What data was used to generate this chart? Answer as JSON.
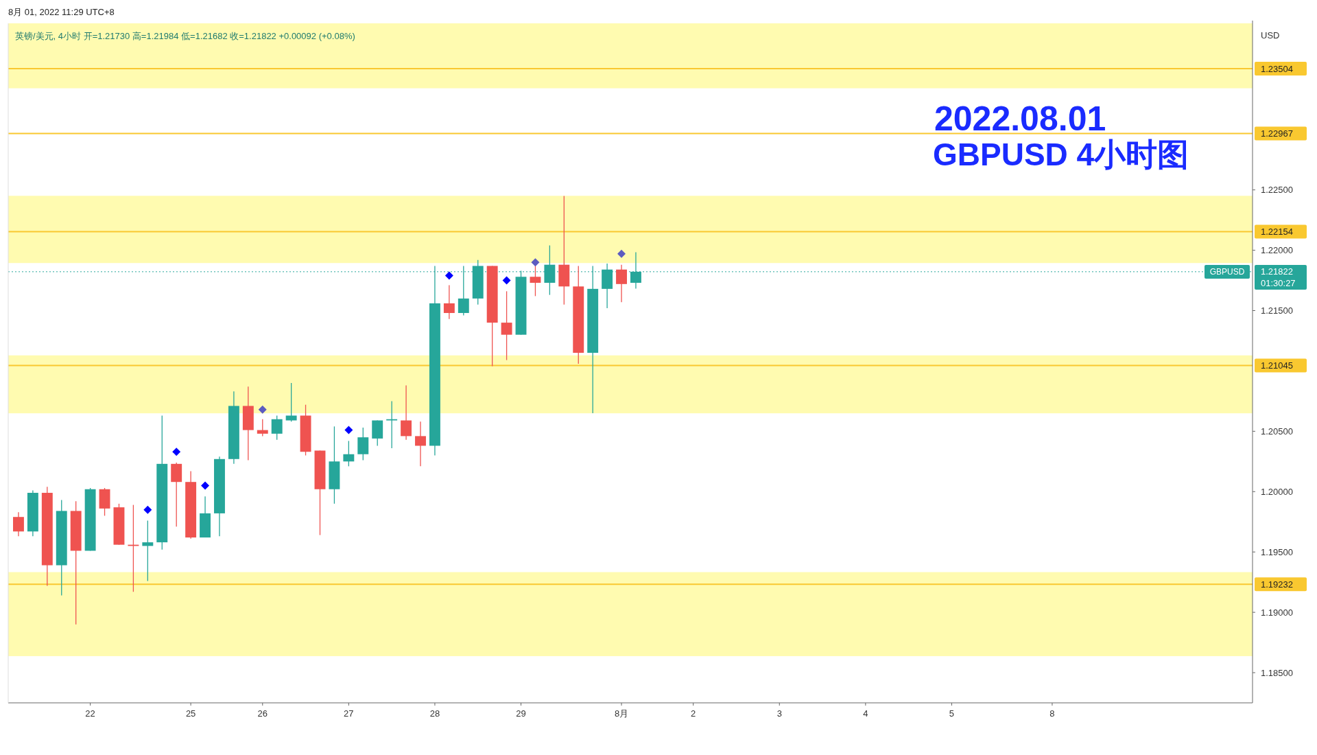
{
  "chart_data": {
    "type": "candlestick",
    "title": "2022.08.01",
    "subtitle": "GBPUSD 4小时图",
    "ylabel": "USD",
    "categories": [
      null,
      null,
      null,
      null,
      null,
      "22",
      null,
      null,
      null,
      null,
      null,
      null,
      "25",
      null,
      null,
      null,
      null,
      "26",
      null,
      null,
      null,
      null,
      null,
      "27",
      null,
      null,
      null,
      null,
      null,
      "28",
      null,
      null,
      null,
      null,
      null,
      "29",
      null,
      null,
      null,
      null,
      null,
      null,
      "8月",
      null,
      null,
      null,
      null,
      "2",
      null,
      null,
      null,
      null,
      null,
      "3",
      null,
      null,
      null,
      null,
      null,
      "4",
      null,
      null,
      null,
      null,
      null,
      "5",
      null,
      null,
      null,
      null,
      null,
      null,
      "8",
      null,
      null,
      null,
      null,
      null,
      null,
      null,
      null,
      null,
      null,
      null,
      null,
      null
    ],
    "ohlc": [
      [
        1.1979,
        1.1983,
        1.1963,
        1.1967
      ],
      [
        1.1967,
        1.2001,
        1.1963,
        1.1999
      ],
      [
        1.1999,
        1.2004,
        1.1922,
        1.1939
      ],
      [
        1.1939,
        1.1993,
        1.1914,
        1.1984
      ],
      [
        1.1984,
        1.1992,
        1.189,
        1.1951
      ],
      [
        1.1951,
        1.2003,
        1.1951,
        1.2002
      ],
      [
        1.2002,
        1.2003,
        1.198,
        1.1986
      ],
      [
        1.1987,
        1.199,
        1.1956,
        1.1956
      ],
      [
        1.1956,
        1.1989,
        1.1917,
        1.1955
      ],
      [
        1.1955,
        1.1976,
        1.1926,
        1.1958
      ],
      [
        1.1958,
        1.2063,
        1.1952,
        1.2023
      ],
      [
        1.2023,
        1.2024,
        1.1971,
        1.2008
      ],
      [
        1.2008,
        1.2017,
        1.1961,
        1.1962
      ],
      [
        1.1962,
        1.1996,
        1.1962,
        1.1982
      ],
      [
        1.1982,
        1.2029,
        1.1963,
        1.2027
      ],
      [
        1.2027,
        1.2083,
        1.2023,
        1.2071
      ],
      [
        1.2071,
        1.2087,
        1.2026,
        1.2051
      ],
      [
        1.2051,
        1.206,
        1.2046,
        1.2048
      ],
      [
        1.2048,
        1.2063,
        1.2043,
        1.206
      ],
      [
        1.2059,
        1.209,
        1.2058,
        1.2063
      ],
      [
        1.2063,
        1.2072,
        1.203,
        1.2033
      ],
      [
        1.2034,
        1.2034,
        1.1964,
        1.2002
      ],
      [
        1.2002,
        1.2054,
        1.199,
        1.2025
      ],
      [
        1.2025,
        1.2042,
        1.2021,
        1.2031
      ],
      [
        1.2031,
        1.2053,
        1.2026,
        1.2045
      ],
      [
        1.2044,
        1.2059,
        1.2038,
        1.2059
      ],
      [
        1.2059,
        1.2075,
        1.2036,
        1.206
      ],
      [
        1.2059,
        1.2088,
        1.2043,
        1.2046
      ],
      [
        1.2046,
        1.2058,
        1.2021,
        1.2038
      ],
      [
        1.2038,
        1.2187,
        1.203,
        1.2156
      ],
      [
        1.2156,
        1.2171,
        1.2143,
        1.2148
      ],
      [
        1.2148,
        1.2187,
        1.2146,
        1.216
      ],
      [
        1.216,
        1.2192,
        1.2155,
        1.2187
      ],
      [
        1.2187,
        1.2187,
        1.2104,
        1.214
      ],
      [
        1.214,
        1.2166,
        1.2109,
        1.213
      ],
      [
        1.213,
        1.2183,
        1.213,
        1.2178
      ],
      [
        1.2178,
        1.2188,
        1.2162,
        1.2173
      ],
      [
        1.2173,
        1.2204,
        1.2163,
        1.2188
      ],
      [
        1.2188,
        1.2245,
        1.2155,
        1.217
      ],
      [
        1.217,
        1.2187,
        1.2106,
        1.2115
      ],
      [
        1.2115,
        1.2187,
        1.2065,
        1.2168
      ],
      [
        1.2168,
        1.2189,
        1.2152,
        1.2184
      ],
      [
        1.2184,
        1.2188,
        1.2157,
        1.2172
      ],
      [
        1.2173,
        1.21984,
        1.21682,
        1.21822
      ],
      null,
      null,
      null,
      null,
      null,
      null,
      null,
      null,
      null,
      null,
      null,
      null,
      null,
      null,
      null,
      null,
      null,
      null,
      null,
      null,
      null,
      null,
      null,
      null,
      null,
      null,
      null,
      null,
      null,
      null,
      null,
      null,
      null,
      null,
      null,
      null,
      null,
      null,
      null,
      null,
      null,
      null
    ],
    "colors": [
      "#ef5350",
      "#26a69a",
      "#ef5350",
      "#26a69a",
      "#ef5350",
      "#26a69a",
      "#ef5350",
      "#ef5350",
      "#ef5350",
      "#26a69a",
      "#26a69a",
      "#ef5350",
      "#ef5350",
      "#26a69a",
      "#26a69a",
      "#26a69a",
      "#ef5350",
      "#ef5350",
      "#26a69a",
      "#26a69a",
      "#ef5350",
      "#ef5350",
      "#26a69a",
      "#26a69a",
      "#26a69a",
      "#26a69a",
      "#26a69a",
      "#ef5350",
      "#ef5350",
      "#26a69a",
      "#ef5350",
      "#26a69a",
      "#26a69a",
      "#ef5350",
      "#ef5350",
      "#26a69a",
      "#ef5350",
      "#26a69a",
      "#ef5350",
      "#ef5350",
      "#26a69a",
      "#26a69a",
      "#ef5350",
      "#26a69a",
      null,
      null,
      null,
      null,
      null,
      null,
      null,
      null,
      null,
      null,
      null,
      null,
      null,
      null,
      null,
      null,
      null,
      null,
      null,
      null,
      null,
      null,
      null,
      null,
      null,
      null,
      null,
      null,
      null,
      null,
      null,
      null,
      null,
      null,
      null,
      null,
      null,
      null,
      null,
      null,
      null,
      null
    ],
    "series": [
      {
        "type": "scatter",
        "color": "#0000ff",
        "marker": "diamond",
        "values": [
          null,
          null,
          null,
          null,
          null,
          null,
          null,
          null,
          null,
          1.1985,
          null,
          1.2033,
          null,
          1.2005,
          null,
          null,
          null,
          null,
          null,
          null,
          null,
          null,
          null,
          1.2051,
          null,
          null,
          null,
          null,
          null,
          null,
          1.2179,
          null,
          null,
          null,
          1.2175,
          null,
          null,
          null,
          null,
          null,
          null,
          null,
          null,
          null,
          null,
          null,
          null,
          null,
          null,
          null,
          null,
          null,
          null,
          null,
          null,
          null,
          null,
          null,
          null,
          null,
          null,
          null,
          null,
          null,
          null,
          null,
          null,
          null,
          null,
          null,
          null,
          null,
          null,
          null,
          null,
          null,
          null,
          null,
          null,
          null,
          null,
          null,
          null,
          null,
          null,
          null
        ]
      },
      {
        "type": "scatter",
        "color": "#5c5cc0",
        "marker": "diamond",
        "values": [
          null,
          null,
          null,
          null,
          null,
          null,
          null,
          null,
          null,
          null,
          null,
          null,
          null,
          null,
          null,
          null,
          null,
          1.2068,
          null,
          null,
          null,
          null,
          null,
          null,
          null,
          null,
          null,
          null,
          null,
          null,
          null,
          null,
          null,
          null,
          null,
          null,
          1.219,
          null,
          null,
          null,
          null,
          null,
          1.2197,
          null,
          null,
          null,
          null,
          null,
          null,
          null,
          null,
          null,
          null,
          null,
          null,
          null,
          null,
          null,
          null,
          null,
          null,
          null,
          null,
          null,
          null,
          null,
          null,
          null,
          null,
          null,
          null,
          null,
          null,
          null,
          null,
          null,
          null,
          null,
          null,
          null,
          null,
          null,
          null,
          null,
          null,
          null
        ]
      }
    ],
    "ylim": [
      1.1825,
      1.2388
    ],
    "yticks": [
      {
        "value": 1.185,
        "label": "1.18500"
      },
      {
        "value": 1.19,
        "label": "1.19000"
      },
      {
        "value": 1.195,
        "label": "1.19500"
      },
      {
        "value": 1.2,
        "label": "1.20000"
      },
      {
        "value": 1.205,
        "label": "1.20500"
      },
      {
        "value": 1.215,
        "label": "1.21500"
      },
      {
        "value": 1.22,
        "label": "1.22000"
      },
      {
        "value": 1.225,
        "label": "1.22500"
      }
    ],
    "ref_lines": [
      {
        "axis": "y",
        "value": 1.23504,
        "label": "1.23504",
        "color": "#f9c830"
      },
      {
        "axis": "y",
        "value": 1.22967,
        "label": "1.22967",
        "color": "#f9c830"
      },
      {
        "axis": "y",
        "value": 1.22154,
        "label": "1.22154",
        "color": "#f9c830"
      },
      {
        "axis": "y",
        "value": 1.21045,
        "label": "1.21045",
        "color": "#f9c830"
      },
      {
        "axis": "y",
        "value": 1.19232,
        "label": "1.19232",
        "color": "#f9c830"
      },
      {
        "axis": "y",
        "value": 1.21822,
        "label": "1.21822",
        "color": "#26a69a",
        "line_style": "dotted"
      }
    ],
    "bands": [
      {
        "axis": "y",
        "from": 1.23342,
        "to": 1.2388,
        "color": "#fffbb0"
      },
      {
        "axis": "y",
        "from": 1.21894,
        "to": 1.22451,
        "color": "#fffbb0"
      },
      {
        "axis": "y",
        "from": 1.20649,
        "to": 1.21129,
        "color": "#fffbb0"
      },
      {
        "axis": "y",
        "from": 1.18637,
        "to": 1.19333,
        "color": "#fffbb0"
      }
    ],
    "annotations": [
      "8月 01, 2022 11:29 UTC+8",
      "英镑/美元, 4小时 开=1.21730 高=1.21984 低=1.21682 收=1.21822 +0.00092 (+0.08%)",
      "01:30:27",
      "GBPUSD"
    ]
  }
}
